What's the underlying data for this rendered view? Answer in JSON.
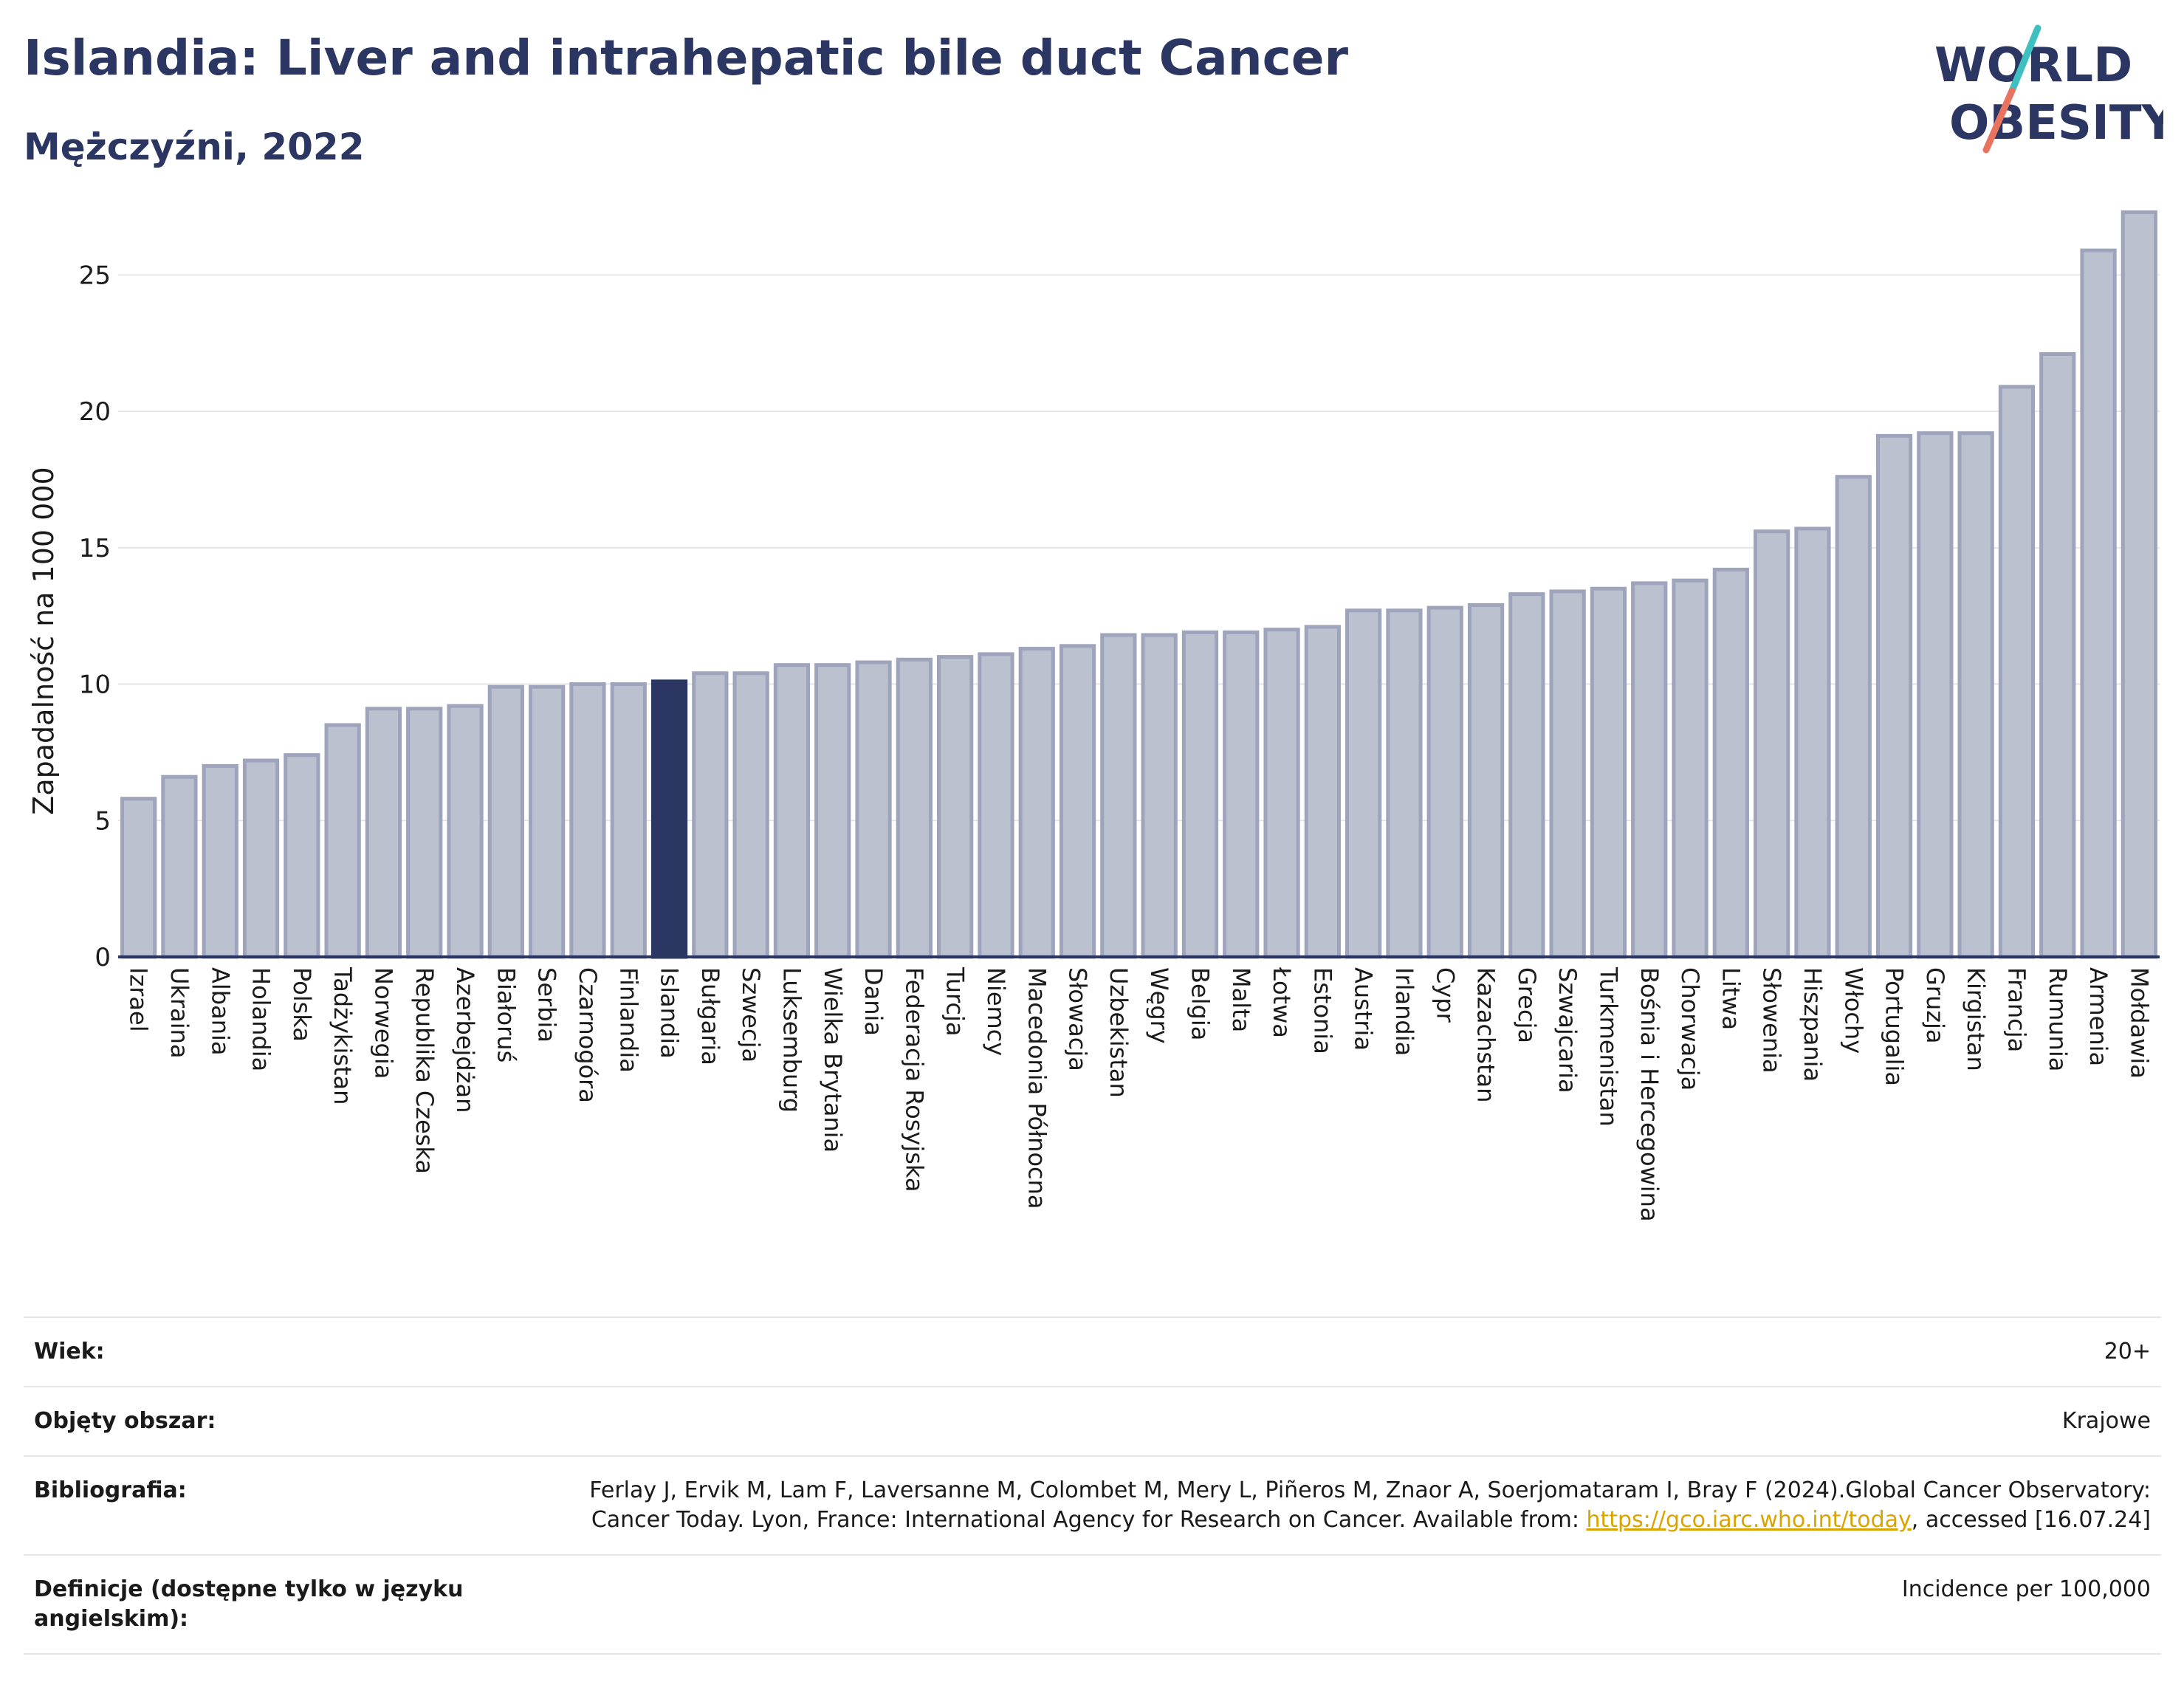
{
  "header": {
    "title": "Islandia: Liver and intrahepatic bile duct Cancer",
    "subtitle": "Mężczyźni, 2022",
    "logo_line1": "WORLD",
    "logo_line2": "OBESITY"
  },
  "colors": {
    "bar": "#bcc1cf",
    "bar_border": "#9ea4bb",
    "highlight": "#2b3663",
    "grid": "#e6e6e6",
    "axis": "#2b3663",
    "logo_teal": "#3fc0c0",
    "logo_coral": "#e8735f"
  },
  "chart_data": {
    "type": "bar",
    "title": "",
    "xlabel": "",
    "ylabel": "Zapadalność na 100 000",
    "ylim": [
      0,
      27.5
    ],
    "yticks": [
      0,
      5,
      10,
      15,
      20,
      25
    ],
    "grid": true,
    "highlight": "Islandia",
    "categories": [
      "Izrael",
      "Ukraina",
      "Albania",
      "Holandia",
      "Polska",
      "Tadżykistan",
      "Norwegia",
      "Republika Czeska",
      "Azerbejdżan",
      "Białoruś",
      "Serbia",
      "Czarnogóra",
      "Finlandia",
      "Islandia",
      "Bułgaria",
      "Szwecja",
      "Luksemburg",
      "Wielka Brytania",
      "Dania",
      "Federacja Rosyjska",
      "Turcja",
      "Niemcy",
      "Macedonia Północna",
      "Słowacja",
      "Uzbekistan",
      "Węgry",
      "Belgia",
      "Malta",
      "Łotwa",
      "Estonia",
      "Austria",
      "Irlandia",
      "Cypr",
      "Kazachstan",
      "Grecja",
      "Szwajcaria",
      "Turkmenistan",
      "Bośnia i Hercegowina",
      "Chorwacja",
      "Litwa",
      "Słowenia",
      "Hiszpania",
      "Włochy",
      "Portugalia",
      "Gruzja",
      "Kirgistan",
      "Francja",
      "Rumunia",
      "Armenia",
      "Mołdawia"
    ],
    "values": [
      5.8,
      6.6,
      7.0,
      7.2,
      7.4,
      8.5,
      9.1,
      9.1,
      9.2,
      9.9,
      9.9,
      10.0,
      10.0,
      10.1,
      10.4,
      10.4,
      10.7,
      10.7,
      10.8,
      10.9,
      11.0,
      11.1,
      11.3,
      11.4,
      11.8,
      11.8,
      11.9,
      11.9,
      12.0,
      12.1,
      12.7,
      12.7,
      12.8,
      12.9,
      13.3,
      13.4,
      13.5,
      13.7,
      13.8,
      14.2,
      15.6,
      15.7,
      17.6,
      19.1,
      19.2,
      19.2,
      20.9,
      22.1,
      25.9,
      27.3
    ]
  },
  "meta": {
    "rows": [
      {
        "label": "Wiek:",
        "value": "20+"
      },
      {
        "label": "Objęty obszar:",
        "value": "Krajowe"
      },
      {
        "label": "Bibliografia:",
        "value_before": "Ferlay J, Ervik M, Lam F, Laversanne M, Colombet M, Mery L, Piñeros M, Znaor A, Soerjomataram I, Bray F (2024).Global Cancer Observatory: Cancer Today. Lyon, France: International Agency for Research on Cancer. Available from: ",
        "link": "https://gco.iarc.who.int/today",
        "value_after": ", accessed [16.07.24]"
      },
      {
        "label": "Definicje (dostępne tylko w języku angielskim):",
        "value": "Incidence per 100,000"
      }
    ]
  }
}
